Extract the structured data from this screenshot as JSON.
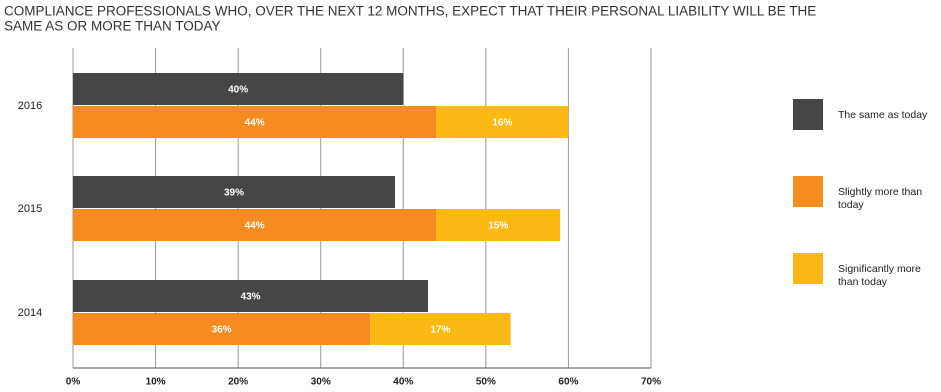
{
  "chart_data": {
    "type": "bar",
    "orientation": "horizontal",
    "title": [
      "COMPLIANCE PROFESSIONALS WHO, OVER THE NEXT 12 MONTHS, EXPECT THAT THEIR PERSONAL LIABILITY WILL BE THE",
      "SAME AS OR MORE THAN TODAY"
    ],
    "categories": [
      "2016",
      "2015",
      "2014"
    ],
    "series": [
      {
        "name": "The same as today",
        "color": "#464646",
        "values": [
          40,
          39,
          43
        ],
        "value_labels": [
          "40%",
          "39%",
          "43%"
        ]
      },
      {
        "name": "Slightly more than today",
        "color": "#f68b1f",
        "values": [
          44,
          44,
          36
        ],
        "value_labels": [
          "44%",
          "44%",
          "36%"
        ]
      },
      {
        "name": "Significantly more than today",
        "color": "#fdb913",
        "values": [
          16,
          15,
          17
        ],
        "value_labels": [
          "16%",
          "15%",
          "17%"
        ]
      }
    ],
    "xlim": [
      0,
      70
    ],
    "xticks": [
      {
        "value": 0,
        "label": "0%"
      },
      {
        "value": 10,
        "label": "10%"
      },
      {
        "value": 20,
        "label": "20%"
      },
      {
        "value": 30,
        "label": "30%"
      },
      {
        "value": 40,
        "label": "40%"
      },
      {
        "value": 50,
        "label": "50%"
      },
      {
        "value": 60,
        "label": "60%"
      },
      {
        "value": 70,
        "label": "70%"
      }
    ],
    "grid": true,
    "legend": "right"
  }
}
